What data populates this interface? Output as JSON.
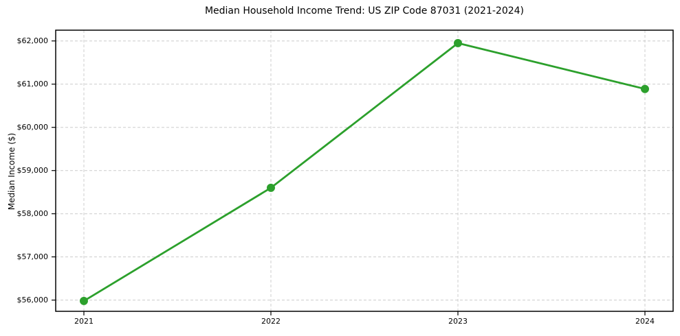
{
  "chart_data": {
    "type": "line",
    "title": "Median Household Income Trend: US ZIP Code 87031 (2021-2024)",
    "xlabel": "",
    "ylabel": "Median Income ($)",
    "x": [
      "2021",
      "2022",
      "2023",
      "2024"
    ],
    "values": [
      55980,
      58600,
      61950,
      60890
    ],
    "xtick_labels": [
      "2021",
      "2022",
      "2023",
      "2024"
    ],
    "yticks": [
      56000,
      57000,
      58000,
      59000,
      60000,
      61000,
      62000
    ],
    "ytick_labels": [
      "$56,000",
      "$57,000",
      "$58,000",
      "$59,000",
      "$60,000",
      "$61,000",
      "$62,000"
    ],
    "ylim": [
      55740,
      62250
    ],
    "grid": true,
    "grid_style": "dashed",
    "legend": "none",
    "marker": "circle",
    "colors": {
      "line": "#2ca02c",
      "marker": "#2ca02c",
      "grid": "#cccccc",
      "spine": "#000000",
      "text": "#000000",
      "background": "#ffffff"
    }
  }
}
